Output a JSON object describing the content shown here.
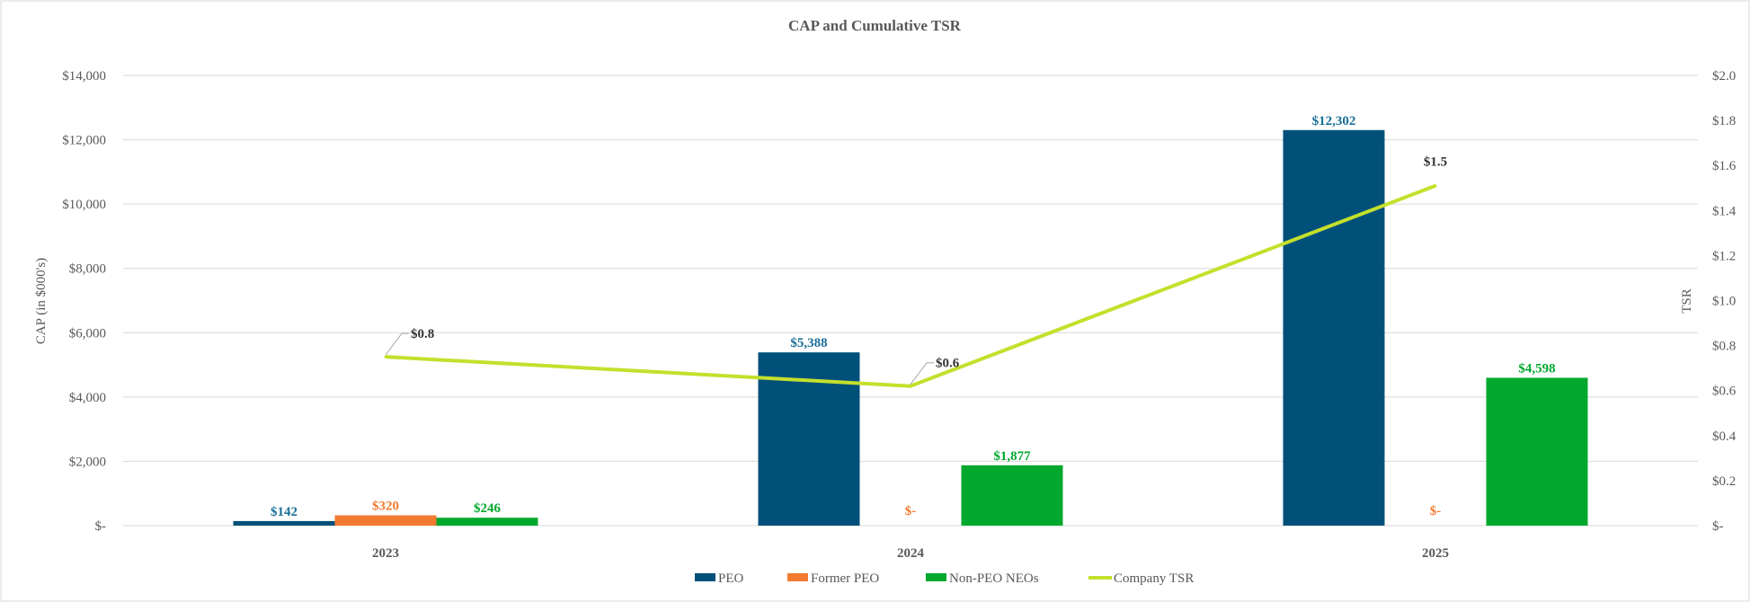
{
  "chart_data": {
    "type": "bar",
    "title": "CAP and Cumulative TSR",
    "categories": [
      "2023",
      "2024",
      "2025"
    ],
    "ylabel": "CAP (in $000's)",
    "y2label": "TSR",
    "ylim": [
      0,
      14000
    ],
    "y2lim": [
      0,
      2.0
    ],
    "yticks": [
      0,
      2000,
      4000,
      6000,
      8000,
      10000,
      12000,
      14000
    ],
    "ytick_labels": [
      "$-",
      "$2,000",
      "$4,000",
      "$6,000",
      "$8,000",
      "$10,000",
      "$12,000",
      "$14,000"
    ],
    "y2ticks": [
      0,
      0.2,
      0.4,
      0.6,
      0.8,
      1.0,
      1.2,
      1.4,
      1.6,
      1.8,
      2.0
    ],
    "y2tick_labels": [
      "$-",
      "$0.2",
      "$0.4",
      "$0.6",
      "$0.8",
      "$1.0",
      "$1.2",
      "$1.4",
      "$1.6",
      "$1.8",
      "$2.0"
    ],
    "grid": true,
    "legend_position": "bottom",
    "series": [
      {
        "name": "PEO",
        "type": "bar",
        "color": "#00507a",
        "label_color": "#1a6f99",
        "values": [
          142,
          5388,
          12302
        ],
        "labels": [
          "$142",
          "$5,388",
          "$12,302"
        ]
      },
      {
        "name": "Former PEO",
        "type": "bar",
        "color": "#f47a30",
        "label_color": "#f47a30",
        "values": [
          320,
          0,
          0
        ],
        "labels": [
          "$320",
          "$-",
          "$-"
        ]
      },
      {
        "name": "Non-PEO NEOs",
        "type": "bar",
        "color": "#00a82d",
        "label_color": "#00a82d",
        "values": [
          246,
          1877,
          4598
        ],
        "labels": [
          "$246",
          "$1,877",
          "$4,598"
        ]
      },
      {
        "name": "Company TSR",
        "type": "line",
        "axis": "secondary",
        "color": "#c4e02c",
        "label_color": "#333333",
        "values": [
          0.75,
          0.62,
          1.51
        ],
        "labels": [
          "$0.8",
          "$0.6",
          "$1.5"
        ]
      }
    ]
  }
}
